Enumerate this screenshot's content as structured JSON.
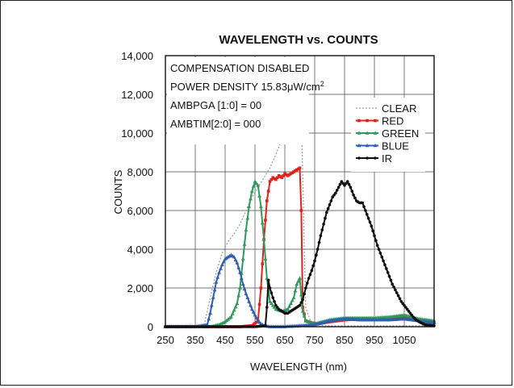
{
  "chart_data": {
    "type": "line",
    "title": "WAVELENGTH vs. COUNTS",
    "xlabel": "WAVELENGTH (nm)",
    "ylabel": "COUNTS",
    "xlim": [
      250,
      1150
    ],
    "ylim": [
      0,
      14000
    ],
    "x_tick_labels": [
      "250",
      "350",
      "450",
      "550",
      "650",
      "750",
      "850",
      "950",
      "1050"
    ],
    "x_ticks": [
      250,
      350,
      450,
      550,
      650,
      750,
      850,
      950,
      1050
    ],
    "y_tick_labels": [
      "0",
      "2,000",
      "4,000",
      "6,000",
      "8,000",
      "10,000",
      "12,000",
      "14,000"
    ],
    "y_ticks": [
      0,
      2000,
      4000,
      6000,
      8000,
      10000,
      12000,
      14000
    ],
    "grid": true,
    "legend_position": "top-right",
    "annotations": {
      "line1": "COMPENSATION DISABLED",
      "line2_main": "POWER DENSITY 15.83μW/cm",
      "line2_sup": "2",
      "line3": "AMBPGA [1:0] = 00",
      "line4": "AMBTIM[2:0] = 000"
    },
    "series": [
      {
        "name": "CLEAR",
        "color": "#9a9a9a",
        "style": "dotted",
        "marker": "none",
        "x": [
          250,
          300,
          350,
          380,
          400,
          420,
          440,
          460,
          480,
          500,
          520,
          540,
          560,
          580,
          600,
          620,
          640,
          650,
          660,
          670,
          680,
          690,
          700,
          705,
          710,
          715,
          720,
          740,
          800,
          900,
          1000,
          1100,
          1150
        ],
        "y": [
          0,
          0,
          0,
          100,
          1500,
          2800,
          3800,
          4400,
          4800,
          5300,
          6000,
          6700,
          7200,
          7700,
          8200,
          8900,
          9700,
          10500,
          11000,
          10800,
          11200,
          11900,
          11700,
          10500,
          8000,
          4000,
          1000,
          100,
          50,
          50,
          50,
          50,
          50
        ]
      },
      {
        "name": "RED",
        "color": "#e0221c",
        "style": "solid",
        "marker": "square",
        "x": [
          250,
          300,
          350,
          400,
          450,
          500,
          540,
          560,
          570,
          580,
          590,
          600,
          610,
          620,
          630,
          640,
          650,
          660,
          670,
          680,
          690,
          700,
          705,
          710,
          720,
          740,
          760,
          800,
          850,
          900,
          950,
          1000,
          1050,
          1100,
          1150
        ],
        "y": [
          0,
          0,
          0,
          0,
          0,
          0,
          50,
          300,
          2000,
          4500,
          6500,
          7500,
          7700,
          7600,
          7800,
          7700,
          7900,
          7800,
          7900,
          8000,
          8100,
          8200,
          6000,
          1000,
          300,
          200,
          150,
          250,
          350,
          400,
          400,
          450,
          450,
          350,
          250
        ]
      },
      {
        "name": "GREEN",
        "color": "#2e9a5b",
        "style": "solid",
        "marker": "triangle",
        "x": [
          250,
          350,
          400,
          430,
          450,
          470,
          490,
          500,
          510,
          520,
          530,
          540,
          550,
          560,
          570,
          580,
          590,
          600,
          620,
          640,
          660,
          680,
          690,
          700,
          710,
          720,
          750,
          800,
          850,
          900,
          950,
          1000,
          1050,
          1100,
          1150
        ],
        "y": [
          0,
          0,
          0,
          100,
          250,
          500,
          1200,
          2000,
          3500,
          5000,
          6200,
          7000,
          7500,
          7300,
          6200,
          4500,
          2500,
          1300,
          900,
          800,
          900,
          1500,
          2200,
          2500,
          800,
          300,
          150,
          350,
          450,
          450,
          450,
          500,
          600,
          400,
          300
        ]
      },
      {
        "name": "BLUE",
        "color": "#2f5fae",
        "style": "solid",
        "marker": "triangle",
        "x": [
          250,
          350,
          390,
          400,
          410,
          420,
          430,
          440,
          450,
          460,
          470,
          480,
          490,
          500,
          510,
          520,
          530,
          540,
          550,
          560,
          570,
          580,
          600,
          650,
          700,
          750,
          800,
          850,
          900,
          950,
          1000,
          1050,
          1100,
          1150
        ],
        "y": [
          0,
          0,
          100,
          700,
          1500,
          2300,
          2800,
          3200,
          3500,
          3600,
          3700,
          3600,
          3300,
          2800,
          2200,
          1700,
          1300,
          900,
          600,
          300,
          150,
          50,
          0,
          0,
          50,
          100,
          300,
          400,
          350,
          350,
          350,
          400,
          300,
          200
        ]
      },
      {
        "name": "IR",
        "color": "#111111",
        "style": "solid",
        "marker": "circle",
        "x": [
          250,
          350,
          450,
          550,
          585,
          590,
          595,
          600,
          610,
          620,
          630,
          640,
          650,
          660,
          670,
          680,
          690,
          700,
          710,
          720,
          730,
          740,
          750,
          760,
          770,
          780,
          790,
          800,
          810,
          820,
          830,
          840,
          850,
          860,
          870,
          880,
          890,
          900,
          910,
          920,
          930,
          940,
          950,
          960,
          970,
          980,
          990,
          1000,
          1010,
          1020,
          1030,
          1040,
          1050,
          1060,
          1070,
          1080,
          1090,
          1100,
          1120,
          1150
        ],
        "y": [
          0,
          0,
          0,
          0,
          50,
          1000,
          2400,
          2000,
          1500,
          1100,
          900,
          800,
          700,
          700,
          800,
          900,
          1000,
          1100,
          1400,
          2000,
          2500,
          2900,
          3400,
          4000,
          4700,
          5300,
          5900,
          6300,
          6700,
          6900,
          7200,
          7500,
          7300,
          7500,
          7200,
          6800,
          6500,
          6400,
          6400,
          6000,
          5600,
          5200,
          4700,
          4200,
          3800,
          3400,
          3000,
          2600,
          2200,
          1900,
          1600,
          1300,
          1100,
          900,
          700,
          500,
          350,
          250,
          100,
          50
        ]
      }
    ]
  }
}
